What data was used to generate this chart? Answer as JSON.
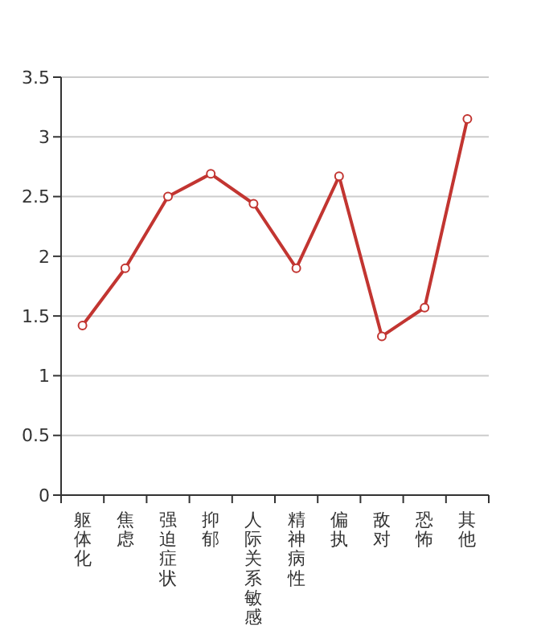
{
  "chart_data": {
    "type": "line",
    "categories": [
      "躯体化",
      "焦虑",
      "强迫症状",
      "抑郁",
      "人际关系敏感",
      "精神病性",
      "偏执",
      "敌对",
      "恐怖",
      "其他"
    ],
    "series": [
      {
        "color": "#c23531",
        "values": [
          1.42,
          1.9,
          2.5,
          2.69,
          2.44,
          1.9,
          2.67,
          1.33,
          1.57,
          3.15
        ]
      }
    ],
    "ylim": [
      0,
      3.5
    ],
    "yticks": [
      0,
      0.5,
      1,
      1.5,
      2,
      2.5,
      3,
      3.5
    ],
    "grid": "y",
    "marker": "circle",
    "line_style": "solid"
  }
}
